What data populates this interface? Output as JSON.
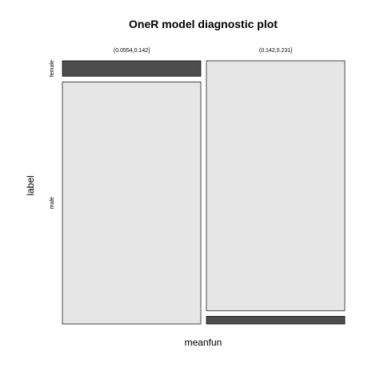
{
  "chart_data": {
    "type": "mosaic",
    "title": "OneR model diagnostic plot",
    "xlabel": "meanfun",
    "ylabel": "label",
    "columns": [
      "(0.0554,0.142]",
      "(0.142,0.231]"
    ],
    "rows": [
      "female",
      "male"
    ],
    "column_shares": [
      0.5,
      0.5
    ],
    "row_shares": [
      [
        0.06,
        0.94
      ],
      [
        0.97,
        0.03
      ]
    ],
    "colors": {
      "predicted": "#4d4d4d",
      "other": "#e6e6e6"
    },
    "predicted_rows": [
      "female",
      "male"
    ]
  }
}
